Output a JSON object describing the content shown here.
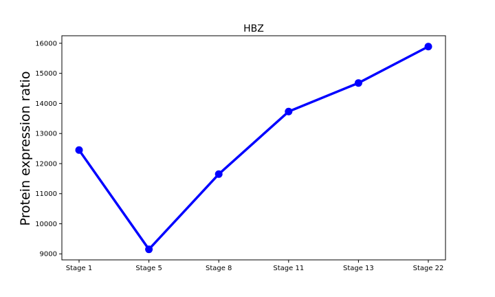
{
  "chart_data": {
    "type": "line",
    "title": "HBZ",
    "xlabel": "",
    "ylabel": "Protein expression ratio",
    "categories": [
      "Stage 1",
      "Stage 5",
      "Stage 8",
      "Stage 11",
      "Stage 13",
      "Stage 22"
    ],
    "series": [
      {
        "values": [
          12450,
          9150,
          11650,
          13730,
          14680,
          15890
        ]
      }
    ],
    "yticks": [
      9000,
      10000,
      11000,
      12000,
      13000,
      14000,
      15000,
      16000
    ],
    "ylim": [
      8800,
      16250
    ],
    "grid": false,
    "legend": "none",
    "colors": {
      "series": "#0000ff",
      "axes": "#000000"
    }
  }
}
